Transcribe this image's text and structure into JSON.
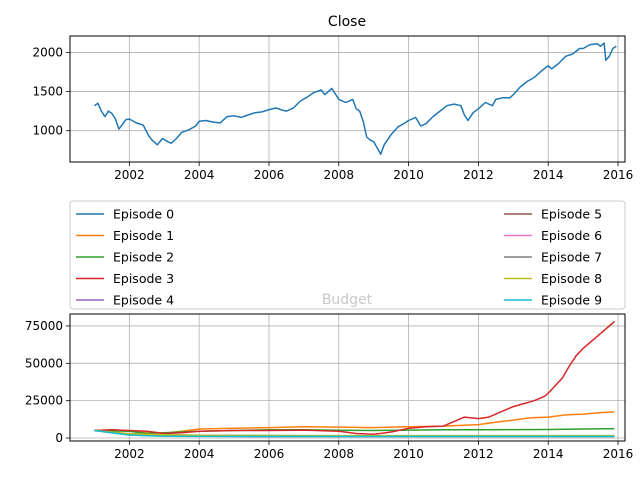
{
  "colors": {
    "episode_colors": [
      "#1f77b4",
      "#ff7f0e",
      "#2ca02c",
      "#d62728",
      "#9467bd",
      "#8c564b",
      "#e377c2",
      "#7f7f7f",
      "#bcbd22",
      "#17becf"
    ],
    "grid": "#b0b0b0",
    "axis": "#000000",
    "budget_title": "#c8c8c8"
  },
  "chart_data": [
    {
      "type": "line",
      "title": "Close",
      "xlabel": "",
      "ylabel": "",
      "xlim": [
        2000.3,
        2016.2
      ],
      "ylim": [
        600,
        2210
      ],
      "xticks": [
        "2002",
        "2004",
        "2006",
        "2008",
        "2010",
        "2012",
        "2014",
        "2016"
      ],
      "yticks": [
        "1000",
        "1500",
        "2000"
      ],
      "grid": true,
      "series": [
        {
          "color": "#1f77b4",
          "x": [
            2001.0,
            2001.1,
            2001.2,
            2001.3,
            2001.4,
            2001.5,
            2001.6,
            2001.7,
            2001.8,
            2001.9,
            2002.0,
            2002.2,
            2002.4,
            2002.55,
            2002.65,
            2002.8,
            2002.95,
            2003.1,
            2003.2,
            2003.35,
            2003.5,
            2003.7,
            2003.9,
            2004.0,
            2004.2,
            2004.4,
            2004.6,
            2004.8,
            2005.0,
            2005.2,
            2005.4,
            2005.6,
            2005.8,
            2006.0,
            2006.2,
            2006.4,
            2006.5,
            2006.7,
            2006.9,
            2007.1,
            2007.3,
            2007.5,
            2007.6,
            2007.8,
            2007.9,
            2008.0,
            2008.2,
            2008.4,
            2008.5,
            2008.6,
            2008.7,
            2008.8,
            2008.9,
            2009.0,
            2009.1,
            2009.2,
            2009.3,
            2009.5,
            2009.7,
            2009.9,
            2010.0,
            2010.2,
            2010.35,
            2010.5,
            2010.7,
            2010.9,
            2011.1,
            2011.3,
            2011.5,
            2011.6,
            2011.7,
            2011.85,
            2012.0,
            2012.2,
            2012.4,
            2012.5,
            2012.7,
            2012.9,
            2013.0,
            2013.2,
            2013.4,
            2013.6,
            2013.8,
            2014.0,
            2014.1,
            2014.3,
            2014.5,
            2014.7,
            2014.9,
            2015.0,
            2015.2,
            2015.4,
            2015.5,
            2015.6,
            2015.65,
            2015.75,
            2015.85,
            2015.95
          ],
          "y": [
            1320,
            1350,
            1250,
            1180,
            1250,
            1220,
            1150,
            1020,
            1080,
            1140,
            1150,
            1100,
            1070,
            940,
            880,
            820,
            900,
            860,
            840,
            900,
            980,
            1010,
            1060,
            1120,
            1130,
            1110,
            1100,
            1180,
            1190,
            1170,
            1200,
            1230,
            1240,
            1270,
            1290,
            1260,
            1250,
            1290,
            1380,
            1430,
            1490,
            1520,
            1460,
            1540,
            1470,
            1400,
            1360,
            1400,
            1280,
            1250,
            1120,
            920,
            880,
            860,
            780,
            700,
            820,
            950,
            1050,
            1100,
            1130,
            1170,
            1060,
            1090,
            1180,
            1250,
            1320,
            1340,
            1320,
            1200,
            1130,
            1230,
            1280,
            1360,
            1320,
            1400,
            1420,
            1420,
            1460,
            1560,
            1630,
            1680,
            1760,
            1830,
            1790,
            1860,
            1950,
            1980,
            2050,
            2050,
            2100,
            2110,
            2080,
            2120,
            1900,
            1950,
            2050,
            2080
          ]
        }
      ]
    },
    {
      "type": "line",
      "title": "Budget",
      "xlabel": "",
      "ylabel": "",
      "xlim": [
        2000.3,
        2016.2
      ],
      "ylim": [
        -2000,
        83000
      ],
      "xticks": [
        "2002",
        "2004",
        "2006",
        "2008",
        "2010",
        "2012",
        "2014",
        "2016"
      ],
      "yticks": [
        "0",
        "25000",
        "50000",
        "75000"
      ],
      "grid": true,
      "legend_position": "top",
      "series": [
        {
          "name": "Episode 0",
          "color": "#1f77b4",
          "x": [
            2001,
            2002,
            2003,
            2004,
            2005,
            2006,
            2007,
            2008,
            2009,
            2010,
            2011,
            2012,
            2013,
            2014,
            2015,
            2015.9
          ],
          "y": [
            5000,
            2000,
            1500,
            1200,
            1100,
            1000,
            1000,
            1000,
            1000,
            1000,
            1000,
            1000,
            1000,
            1000,
            1000,
            1000
          ]
        },
        {
          "name": "Episode 1",
          "color": "#ff7f0e",
          "x": [
            2001,
            2001.5,
            2002,
            2002.5,
            2003,
            2003.5,
            2004,
            2005,
            2006,
            2007,
            2008,
            2009,
            2010,
            2011,
            2012,
            2012.5,
            2013,
            2013.5,
            2014,
            2014.5,
            2015,
            2015.5,
            2015.9
          ],
          "y": [
            5000,
            5500,
            4800,
            3500,
            3200,
            4500,
            6000,
            6500,
            7000,
            7500,
            7300,
            7000,
            7500,
            8000,
            9000,
            10500,
            12000,
            13500,
            14000,
            15500,
            16000,
            17000,
            17500
          ]
        },
        {
          "name": "Episode 2",
          "color": "#2ca02c",
          "x": [
            2001,
            2002,
            2002.5,
            2003,
            2004,
            2005,
            2006,
            2007,
            2008,
            2009,
            2010,
            2011,
            2012,
            2013,
            2014,
            2015,
            2015.9
          ],
          "y": [
            5000,
            4500,
            3000,
            3500,
            4500,
            5000,
            5500,
            5500,
            5200,
            5000,
            5300,
            5500,
            5500,
            5600,
            5700,
            6000,
            6300
          ]
        },
        {
          "name": "Episode 3",
          "color": "#d62728",
          "x": [
            2001,
            2001.5,
            2002,
            2002.5,
            2003,
            2003.5,
            2004,
            2005,
            2006,
            2007,
            2008,
            2008.5,
            2009,
            2009.5,
            2010,
            2010.5,
            2011,
            2011.3,
            2011.6,
            2012,
            2012.3,
            2012.6,
            2013,
            2013.3,
            2013.6,
            2013.9,
            2014,
            2014.2,
            2014.4,
            2014.6,
            2014.8,
            2015,
            2015.2,
            2015.4,
            2015.6,
            2015.8,
            2015.9
          ],
          "y": [
            5000,
            5500,
            5000,
            4500,
            3000,
            3500,
            4500,
            5000,
            5000,
            5300,
            4500,
            3000,
            2500,
            4000,
            6500,
            7500,
            8000,
            11000,
            14000,
            13000,
            14000,
            17000,
            21000,
            23000,
            25000,
            28000,
            30000,
            35000,
            40000,
            48000,
            55000,
            60000,
            64000,
            68000,
            72000,
            76000,
            78000
          ]
        },
        {
          "name": "Episode 4",
          "color": "#9467bd",
          "x": [
            2001,
            2002,
            2003,
            2004,
            2006,
            2008,
            2010,
            2012,
            2014,
            2015.9
          ],
          "y": [
            5000,
            2500,
            1800,
            1500,
            1300,
            1200,
            1200,
            1200,
            1200,
            1200
          ]
        },
        {
          "name": "Episode 5",
          "color": "#8c564b",
          "x": [
            2001,
            2002,
            2003,
            2004,
            2006,
            2008,
            2010,
            2012,
            2014,
            2015.9
          ],
          "y": [
            5000,
            2600,
            1900,
            1600,
            1400,
            1300,
            1300,
            1300,
            1300,
            1300
          ]
        },
        {
          "name": "Episode 6",
          "color": "#e377c2",
          "x": [
            2001,
            2002,
            2003,
            2004,
            2006,
            2008,
            2010,
            2012,
            2014,
            2015.9
          ],
          "y": [
            5000,
            2700,
            2000,
            1700,
            1500,
            1400,
            1400,
            1400,
            1400,
            1400
          ]
        },
        {
          "name": "Episode 7",
          "color": "#7f7f7f",
          "x": [
            2001,
            2002,
            2003,
            2004,
            2006,
            2008,
            2010,
            2012,
            2014,
            2015.9
          ],
          "y": [
            5000,
            2800,
            2100,
            1800,
            1600,
            1500,
            1500,
            1500,
            1500,
            1500
          ]
        },
        {
          "name": "Episode 8",
          "color": "#bcbd22",
          "x": [
            2001,
            2002,
            2003,
            2004,
            2006,
            2008,
            2010,
            2012,
            2014,
            2015.9
          ],
          "y": [
            5000,
            2900,
            2200,
            1900,
            1700,
            1600,
            1600,
            1600,
            1600,
            1600
          ]
        },
        {
          "name": "Episode 9",
          "color": "#17becf",
          "x": [
            2001,
            2001.5,
            2002,
            2002.5,
            2003,
            2004,
            2006,
            2008,
            2010,
            2012,
            2014,
            2015.9
          ],
          "y": [
            5000,
            3500,
            2000,
            1500,
            1200,
            1100,
            1100,
            1100,
            1100,
            1100,
            1100,
            1100
          ]
        }
      ]
    }
  ]
}
